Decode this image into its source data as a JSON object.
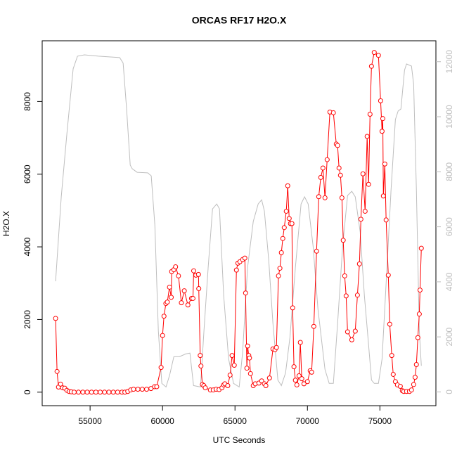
{
  "chart_data": {
    "type": "line",
    "title": "ORCAS RF17 H2O.X",
    "x_label": "UTC Seconds",
    "y_label": "H2O.X",
    "xlim": [
      51694,
      78866
    ],
    "xticks": [
      55000,
      60000,
      65000,
      70000,
      75000
    ],
    "ylim": [
      -372,
      9672
    ],
    "yticks": [
      0,
      2000,
      4000,
      6000,
      8000
    ],
    "y2lim": [
      -500,
      12760
    ],
    "y2ticks": [
      0,
      2000,
      4000,
      6000,
      8000,
      10000,
      12000
    ],
    "series": [
      {
        "color": "#bebebe",
        "axis": "y2",
        "x": [
          52620,
          53010,
          53400,
          53830,
          54130,
          54610,
          55580,
          57040,
          57280,
          57520,
          57770,
          57910,
          58250,
          58980,
          59220,
          59470,
          59710,
          59950,
          60240,
          60490,
          60780,
          61160,
          61600,
          61890,
          62140,
          62620,
          62860,
          63150,
          63450,
          63740,
          63930,
          64220,
          64560,
          64900,
          65290,
          65530,
          65870,
          66260,
          66600,
          66840,
          67030,
          67330,
          67620,
          67960,
          68200,
          68490,
          68790,
          69170,
          69560,
          69800,
          70050,
          70390,
          70730,
          71210,
          71500,
          71790,
          72080,
          72430,
          72770,
          73060,
          73300,
          73640,
          73930,
          74220,
          74420,
          74610,
          74900,
          75150,
          75490,
          75770,
          76070,
          76260,
          76450,
          76700,
          76840,
          77180,
          77330,
          77520,
          77720,
          77860
        ],
        "values": [
          4020,
          7090,
          9390,
          11740,
          12200,
          12250,
          12200,
          12150,
          11950,
          10280,
          8240,
          8110,
          7980,
          7960,
          7850,
          6060,
          2230,
          310,
          180,
          610,
          1280,
          1280,
          1380,
          1410,
          230,
          180,
          2230,
          4530,
          6650,
          6830,
          6650,
          3500,
          1200,
          310,
          180,
          1460,
          4530,
          6190,
          6830,
          6980,
          6570,
          4780,
          2480,
          430,
          230,
          690,
          1970,
          4530,
          6830,
          7090,
          6830,
          5300,
          2990,
          820,
          310,
          310,
          2480,
          5300,
          7140,
          7290,
          7090,
          5810,
          3500,
          1710,
          430,
          310,
          310,
          1200,
          4530,
          7340,
          9900,
          10210,
          10280,
          11690,
          11920,
          11840,
          11180,
          7340,
          2230,
          950
        ]
      },
      {
        "color": "#ff0000",
        "x": [
          52620,
          52720,
          52820,
          52960,
          53100,
          53250,
          53400,
          53550,
          53700,
          53900,
          54200,
          54500,
          54800,
          55100,
          55400,
          55700,
          56000,
          56300,
          56600,
          56900,
          57200,
          57400,
          57600,
          57800,
          58000,
          58300,
          58600,
          58900,
          59200,
          59450,
          59600,
          59900,
          60000,
          60100,
          60230,
          60330,
          60480,
          60600,
          60630,
          60780,
          60900,
          61100,
          61300,
          61500,
          61750,
          62000,
          62100,
          62150,
          62300,
          62480,
          62500,
          62600,
          62650,
          62750,
          62850,
          62950,
          63300,
          63500,
          63700,
          63900,
          64100,
          64220,
          64300,
          64500,
          64660,
          64800,
          64950,
          65100,
          65200,
          65340,
          65530,
          65680,
          65730,
          65820,
          65870,
          65950,
          66000,
          66070,
          66260,
          66400,
          66650,
          66840,
          67030,
          67130,
          67380,
          67620,
          67760,
          67860,
          68000,
          68100,
          68200,
          68300,
          68400,
          68540,
          68640,
          68740,
          68830,
          68930,
          68980,
          69070,
          69170,
          69270,
          69420,
          69510,
          69610,
          69760,
          70000,
          70190,
          70290,
          70440,
          70630,
          70780,
          70920,
          71070,
          71210,
          71360,
          71550,
          71790,
          71990,
          72080,
          72180,
          72280,
          72380,
          72470,
          72570,
          72670,
          72770,
          73060,
          73300,
          73450,
          73590,
          73690,
          73830,
          73980,
          74120,
          74220,
          74320,
          74420,
          74610,
          74900,
          75050,
          75150,
          75200,
          75240,
          75340,
          75430,
          75580,
          75680,
          75820,
          75920,
          76070,
          76210,
          76410,
          76550,
          76650,
          76840,
          77040,
          77180,
          77330,
          77430,
          77520,
          77620,
          77720,
          77770,
          77860
        ],
        "values": [
          2030,
          570,
          140,
          220,
          120,
          110,
          50,
          20,
          10,
          0,
          0,
          0,
          0,
          0,
          0,
          0,
          0,
          0,
          0,
          0,
          0,
          0,
          20,
          60,
          80,
          80,
          80,
          80,
          100,
          150,
          150,
          680,
          1560,
          2090,
          2440,
          2480,
          2890,
          2610,
          3320,
          3370,
          3450,
          3200,
          2460,
          2790,
          2400,
          2580,
          2580,
          3340,
          3220,
          3240,
          2850,
          1010,
          720,
          210,
          180,
          120,
          60,
          60,
          80,
          70,
          120,
          200,
          230,
          180,
          470,
          1010,
          740,
          3360,
          3550,
          3590,
          3650,
          3690,
          2730,
          660,
          1270,
          1010,
          940,
          510,
          180,
          230,
          250,
          310,
          230,
          180,
          390,
          1190,
          1170,
          1230,
          3200,
          3410,
          3840,
          4230,
          4530,
          4980,
          5680,
          4780,
          4640,
          4640,
          2320,
          700,
          330,
          200,
          450,
          1370,
          370,
          230,
          290,
          590,
          550,
          1810,
          3880,
          5380,
          5910,
          6170,
          5350,
          6400,
          7710,
          7690,
          6830,
          6790,
          6170,
          5970,
          5350,
          4180,
          3200,
          2650,
          1660,
          1440,
          1680,
          2670,
          3530,
          4760,
          6010,
          4980,
          7040,
          5720,
          7650,
          8970,
          9350,
          9270,
          8020,
          7180,
          7530,
          5400,
          6280,
          4740,
          3220,
          1870,
          1010,
          490,
          290,
          200,
          160,
          40,
          20,
          20,
          20,
          60,
          210,
          410,
          760,
          1500,
          2150,
          2810,
          3960
        ]
      }
    ]
  }
}
